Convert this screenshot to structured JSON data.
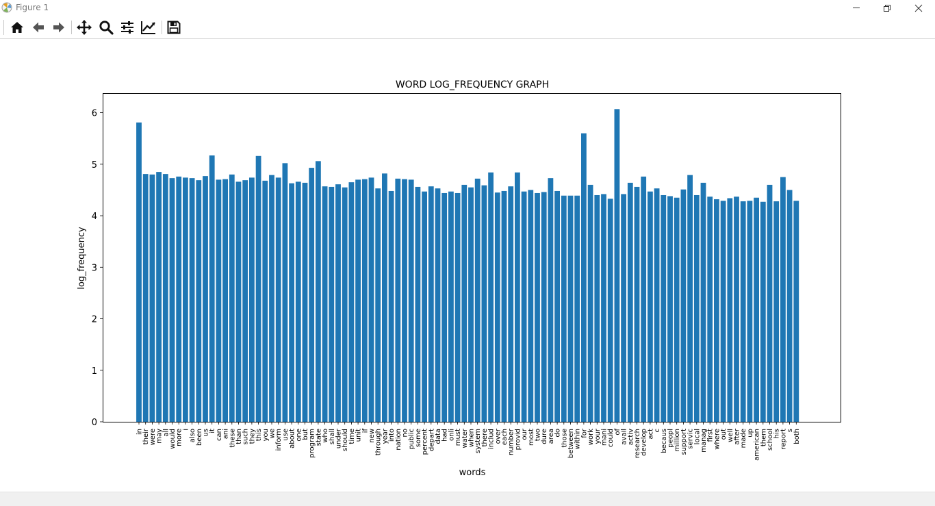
{
  "window": {
    "title": "Figure 1",
    "controls": [
      "minimize-icon",
      "restore-icon",
      "close-icon"
    ]
  },
  "toolbar": {
    "buttons": [
      {
        "name": "home",
        "icon": "home-icon"
      },
      {
        "name": "back",
        "icon": "arrow-left-icon"
      },
      {
        "name": "forward",
        "icon": "arrow-right-icon"
      },
      {
        "name": "pan",
        "icon": "move-icon"
      },
      {
        "name": "zoom",
        "icon": "magnifier-icon"
      },
      {
        "name": "configure-subplots",
        "icon": "sliders-icon"
      },
      {
        "name": "edit-axis",
        "icon": "line-chart-icon"
      },
      {
        "name": "save",
        "icon": "floppy-disk-icon"
      }
    ]
  },
  "statusbar": {
    "text": ""
  },
  "chart_data": {
    "type": "bar",
    "title": "WORD LOG_FREQUENCY GRAPH",
    "xlabel": "words",
    "ylabel": "log_frequency",
    "ylim": [
      0,
      6.38
    ],
    "yticks": [
      "0",
      "1",
      "2",
      "3",
      "4",
      "5",
      "6"
    ],
    "grid": false,
    "bar_color": "#1f77b4",
    "categories": [
      "in",
      "their",
      "were",
      "may",
      "all",
      "would",
      "more",
      "i",
      "also",
      "been",
      "us",
      "it",
      "can",
      "ani",
      "these",
      "than",
      "such",
      "they",
      "this",
      "you",
      "we",
      "inform",
      "use",
      "about",
      "one",
      "but",
      "program",
      "state",
      "who",
      "shall",
      "under",
      "should",
      "time",
      "unit",
      "if",
      "new",
      "through",
      "year",
      "into",
      "nation",
      "no",
      "public",
      "some",
      "percent",
      "depart",
      "data",
      "had",
      "onli",
      "must",
      "water",
      "when",
      "system",
      "there",
      "includ",
      "over",
      "each",
      "number",
      "provid",
      "our",
      "most",
      "two",
      "dure",
      "area",
      "do",
      "those",
      "between",
      "within",
      "for",
      "work",
      "your",
      "mani",
      "could",
      "of",
      "avail",
      "activ",
      "research",
      "develop",
      "act",
      "c",
      "becaus",
      "peopl",
      "million",
      "support",
      "servic",
      "local",
      "manag",
      "first",
      "where",
      "out",
      "well",
      "after",
      "made",
      "up",
      "american",
      "them",
      "school",
      "his",
      "report",
      "s",
      "both"
    ],
    "values": [
      5.81,
      4.81,
      4.8,
      4.85,
      4.81,
      4.73,
      4.76,
      4.74,
      4.73,
      4.69,
      4.77,
      5.17,
      4.7,
      4.71,
      4.8,
      4.66,
      4.69,
      4.74,
      5.16,
      4.68,
      4.79,
      4.74,
      5.02,
      4.63,
      4.66,
      4.64,
      4.93,
      5.06,
      4.57,
      4.56,
      4.61,
      4.55,
      4.65,
      4.7,
      4.71,
      4.74,
      4.53,
      4.82,
      4.48,
      4.72,
      4.71,
      4.7,
      4.56,
      4.47,
      4.57,
      4.53,
      4.44,
      4.47,
      4.44,
      4.6,
      4.55,
      4.72,
      4.59,
      4.84,
      4.45,
      4.48,
      4.57,
      4.84,
      4.47,
      4.5,
      4.44,
      4.46,
      4.73,
      4.48,
      4.39,
      4.39,
      4.39,
      5.6,
      4.6,
      4.4,
      4.42,
      4.33,
      6.07,
      4.42,
      4.64,
      4.56,
      4.76,
      4.47,
      4.53,
      4.4,
      4.38,
      4.35,
      4.51,
      4.79,
      4.4,
      4.64,
      4.37,
      4.32,
      4.29,
      4.34,
      4.37,
      4.28,
      4.29,
      4.35,
      4.27,
      4.6,
      4.28,
      4.75,
      4.5,
      4.29
    ]
  }
}
